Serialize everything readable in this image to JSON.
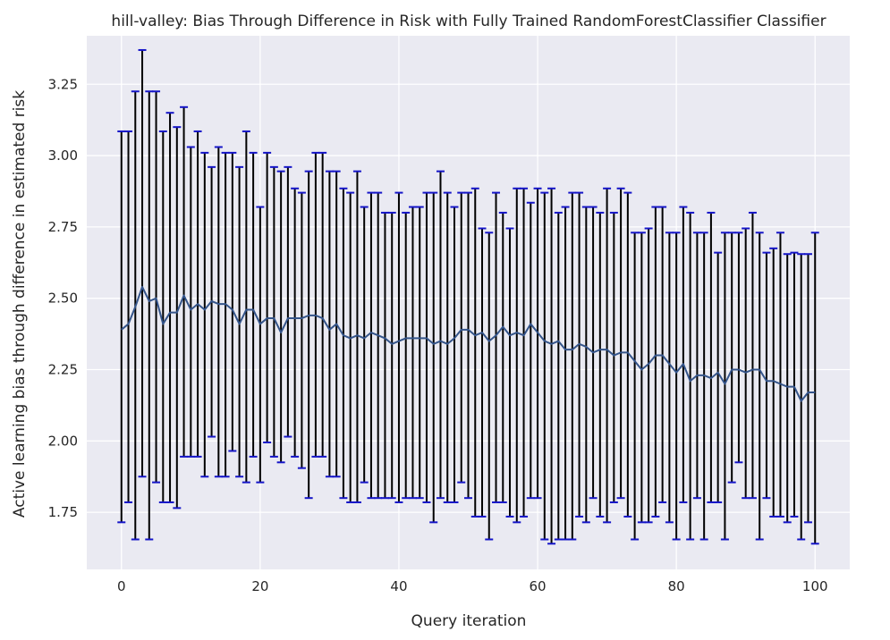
{
  "chart_data": {
    "type": "line",
    "title": "hill-valley: Bias Through Difference in Risk with Fully Trained RandomForestClassifier Classifier",
    "xlabel": "Query iteration",
    "ylabel": "Active learning bias through difference in estimated risk",
    "xlim": [
      -5,
      105
    ],
    "ylim": [
      1.55,
      3.42
    ],
    "x_ticks": [
      0,
      20,
      40,
      60,
      80,
      100
    ],
    "x_tick_labels": [
      "0",
      "20",
      "40",
      "60",
      "80",
      "100"
    ],
    "y_ticks": [
      1.75,
      2.0,
      2.25,
      2.5,
      2.75,
      3.0,
      3.25
    ],
    "y_tick_labels": [
      "1.75",
      "2.00",
      "2.25",
      "2.50",
      "2.75",
      "3.00",
      "3.25"
    ],
    "grid": true,
    "colors": {
      "background": "#eaeaf2",
      "grid": "#ffffff",
      "line": "#34548a",
      "errorbar": "#000000",
      "cap": "#1515c8"
    },
    "series": [
      {
        "x": [
          0,
          1,
          2,
          3,
          4,
          5,
          6,
          7,
          8,
          9,
          10,
          11,
          12,
          13,
          14,
          15,
          16,
          17,
          18,
          19,
          20,
          21,
          22,
          23,
          24,
          25,
          26,
          27,
          28,
          29,
          30,
          31,
          32,
          33,
          34,
          35,
          36,
          37,
          38,
          39,
          40,
          41,
          42,
          43,
          44,
          45,
          46,
          47,
          48,
          49,
          50,
          51,
          52,
          53,
          54,
          55,
          56,
          57,
          58,
          59,
          60,
          61,
          62,
          63,
          64,
          65,
          66,
          67,
          68,
          69,
          70,
          71,
          72,
          73,
          74,
          75,
          76,
          77,
          78,
          79,
          80,
          81,
          82,
          83,
          84,
          85,
          86,
          87,
          88,
          89,
          90,
          91,
          92,
          93,
          94,
          95,
          96,
          97,
          98,
          99,
          100
        ],
        "y": [
          2.39,
          2.41,
          2.47,
          2.54,
          2.49,
          2.5,
          2.41,
          2.45,
          2.45,
          2.51,
          2.46,
          2.48,
          2.46,
          2.49,
          2.48,
          2.48,
          2.46,
          2.41,
          2.46,
          2.46,
          2.41,
          2.43,
          2.43,
          2.38,
          2.43,
          2.43,
          2.43,
          2.44,
          2.44,
          2.43,
          2.39,
          2.41,
          2.37,
          2.36,
          2.37,
          2.36,
          2.38,
          2.37,
          2.36,
          2.34,
          2.35,
          2.36,
          2.36,
          2.36,
          2.36,
          2.34,
          2.35,
          2.34,
          2.36,
          2.39,
          2.39,
          2.37,
          2.38,
          2.35,
          2.37,
          2.4,
          2.37,
          2.38,
          2.37,
          2.41,
          2.38,
          2.35,
          2.34,
          2.35,
          2.32,
          2.32,
          2.34,
          2.33,
          2.31,
          2.32,
          2.32,
          2.3,
          2.31,
          2.31,
          2.28,
          2.25,
          2.27,
          2.3,
          2.3,
          2.27,
          2.24,
          2.27,
          2.21,
          2.23,
          2.23,
          2.22,
          2.24,
          2.2,
          2.25,
          2.25,
          2.24,
          2.25,
          2.25,
          2.21,
          2.21,
          2.2,
          2.19,
          2.19,
          2.14,
          2.17,
          2.17
        ],
        "yerr_low": [
          1.715,
          1.785,
          1.655,
          1.875,
          1.655,
          1.855,
          1.785,
          1.785,
          1.765,
          1.945,
          1.945,
          1.945,
          1.875,
          2.015,
          1.875,
          1.875,
          1.965,
          1.875,
          1.855,
          1.945,
          1.855,
          1.995,
          1.945,
          1.925,
          2.015,
          1.945,
          1.905,
          1.8,
          1.945,
          1.945,
          1.875,
          1.875,
          1.8,
          1.785,
          1.785,
          1.855,
          1.8,
          1.8,
          1.8,
          1.8,
          1.785,
          1.8,
          1.8,
          1.8,
          1.785,
          1.715,
          1.8,
          1.785,
          1.785,
          1.855,
          1.8,
          1.735,
          1.735,
          1.655,
          1.785,
          1.785,
          1.735,
          1.715,
          1.735,
          1.8,
          1.8,
          1.655,
          1.64,
          1.655,
          1.655,
          1.655,
          1.735,
          1.715,
          1.8,
          1.735,
          1.715,
          1.785,
          1.8,
          1.735,
          1.655,
          1.715,
          1.715,
          1.735,
          1.785,
          1.715,
          1.655,
          1.785,
          1.655,
          1.8,
          1.655,
          1.785,
          1.785,
          1.655,
          1.855,
          1.925,
          1.8,
          1.8,
          1.655,
          1.8,
          1.735,
          1.735,
          1.715,
          1.735,
          1.655,
          1.715,
          1.64
        ],
        "yerr_high": [
          3.085,
          3.085,
          3.225,
          3.37,
          3.225,
          3.225,
          3.085,
          3.15,
          3.1,
          3.17,
          3.03,
          3.085,
          3.01,
          2.96,
          3.03,
          3.01,
          3.01,
          2.96,
          3.085,
          3.01,
          2.82,
          3.01,
          2.96,
          2.945,
          2.96,
          2.885,
          2.87,
          2.945,
          3.01,
          3.01,
          2.945,
          2.945,
          2.885,
          2.87,
          2.945,
          2.82,
          2.87,
          2.87,
          2.8,
          2.8,
          2.87,
          2.8,
          2.82,
          2.82,
          2.87,
          2.87,
          2.945,
          2.87,
          2.82,
          2.87,
          2.87,
          2.885,
          2.745,
          2.73,
          2.87,
          2.8,
          2.745,
          2.885,
          2.885,
          2.835,
          2.885,
          2.87,
          2.885,
          2.8,
          2.82,
          2.87,
          2.87,
          2.82,
          2.82,
          2.8,
          2.885,
          2.8,
          2.885,
          2.87,
          2.73,
          2.73,
          2.745,
          2.82,
          2.82,
          2.73,
          2.73,
          2.82,
          2.8,
          2.73,
          2.73,
          2.8,
          2.66,
          2.73,
          2.73,
          2.73,
          2.745,
          2.8,
          2.73,
          2.66,
          2.675,
          2.73,
          2.655,
          2.66,
          2.655,
          2.655,
          2.73
        ]
      }
    ]
  }
}
